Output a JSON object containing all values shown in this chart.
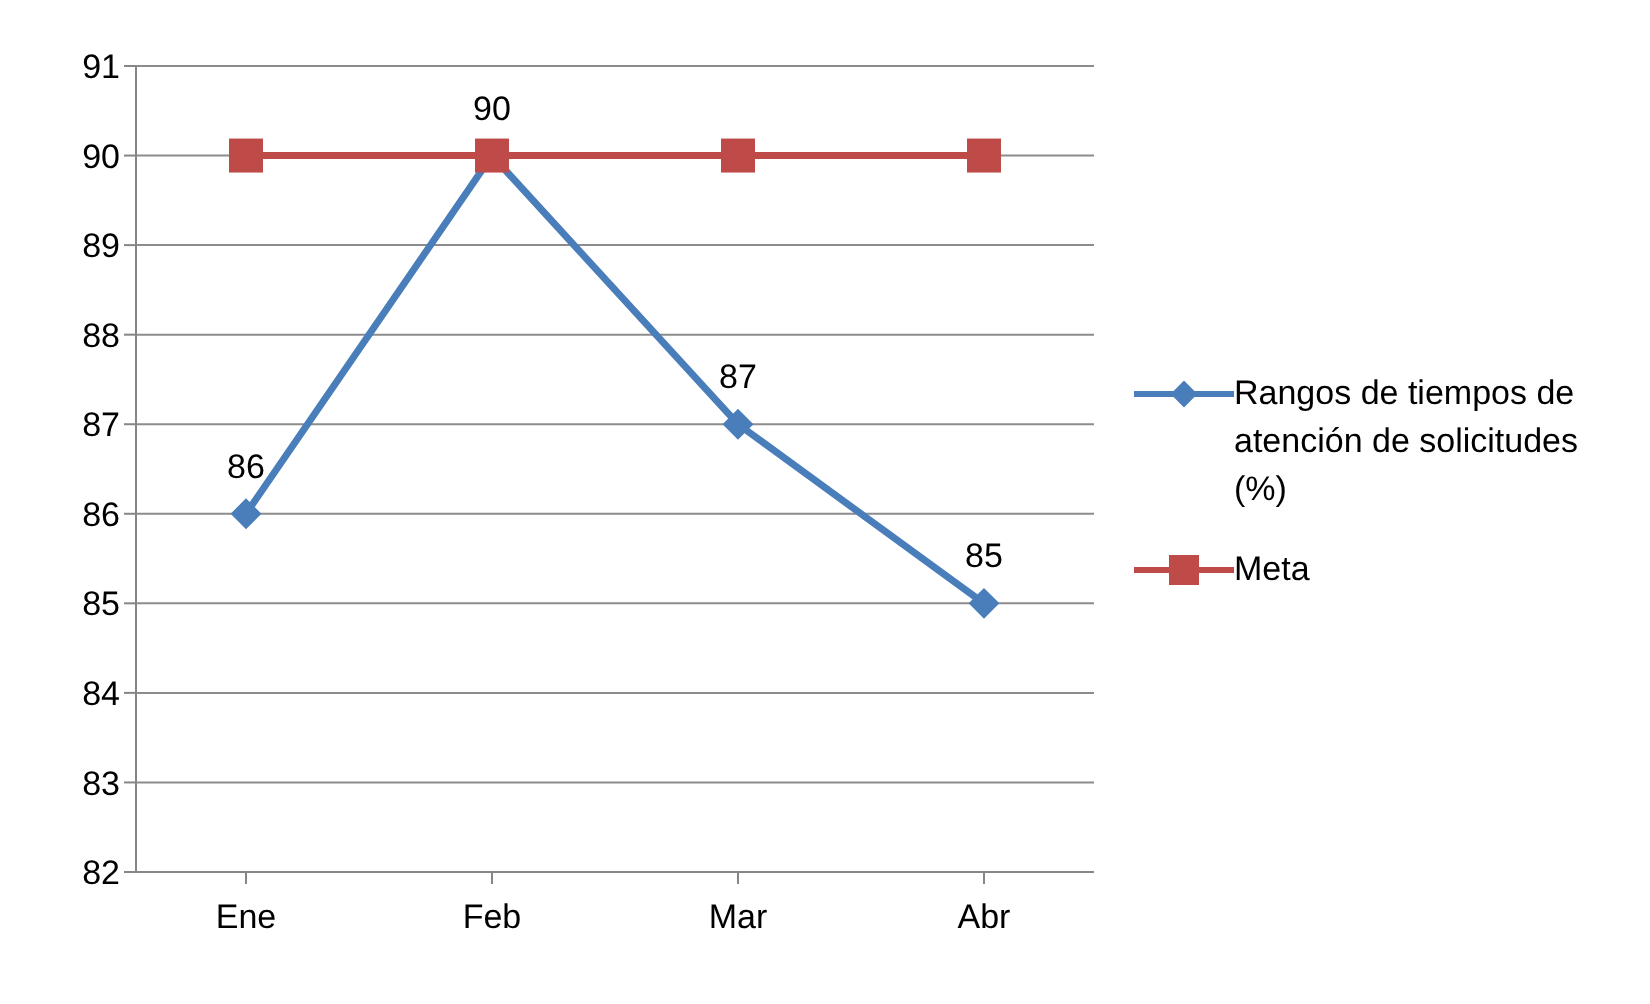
{
  "chart_data": {
    "type": "line",
    "categories": [
      "Ene",
      "Feb",
      "Mar",
      "Abr"
    ],
    "series": [
      {
        "name": "Rangos de tiempos de atención de solicitudes (%)",
        "color": "#4a7ebb",
        "values": [
          86,
          90,
          87,
          85
        ],
        "marker": "diamond",
        "value_labels": [
          "86",
          "90",
          "87",
          "85"
        ]
      },
      {
        "name": "Meta",
        "color": "#be4b48",
        "values": [
          90,
          90,
          90,
          90
        ],
        "marker": "square"
      }
    ],
    "ylim": [
      82,
      91
    ],
    "yticks": [
      82,
      83,
      84,
      85,
      86,
      87,
      88,
      89,
      90,
      91
    ],
    "grid": "y",
    "legend": "right"
  }
}
